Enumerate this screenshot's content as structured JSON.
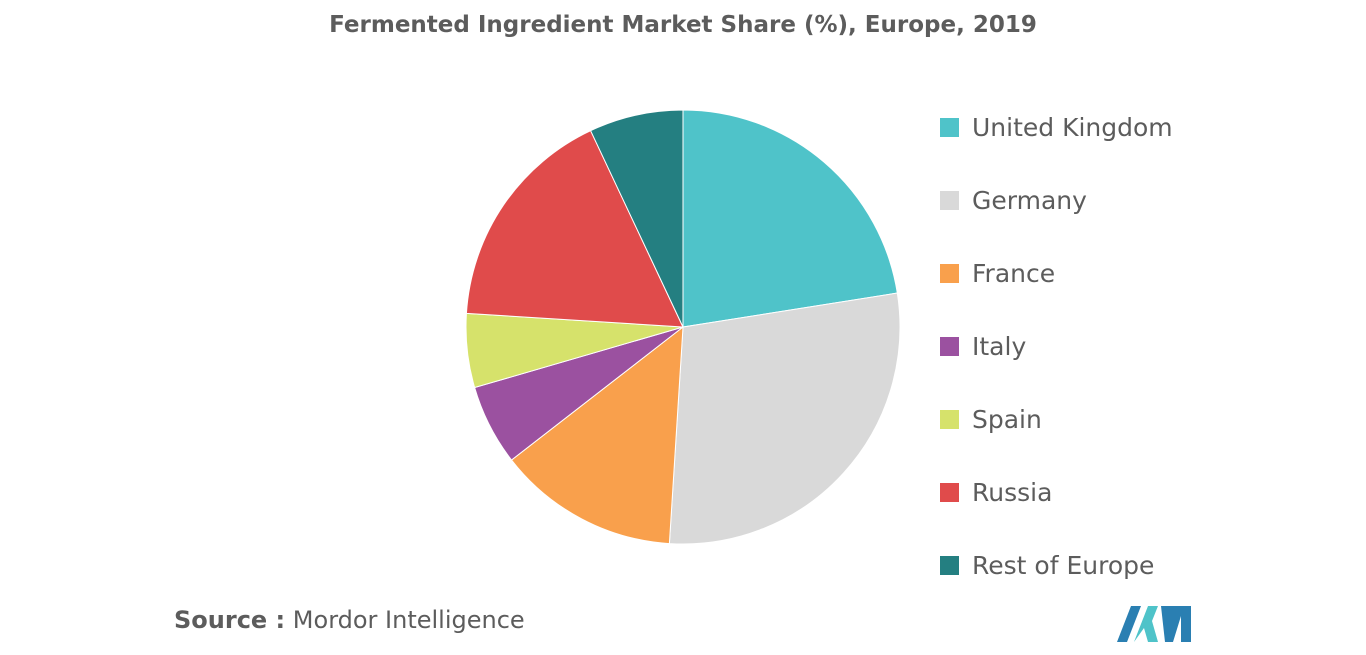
{
  "chart_data": {
    "type": "pie",
    "title": "Fermented Ingredient Market Share (%), Europe, 2019",
    "legend_position": "right",
    "slices": [
      {
        "label": "United Kingdom",
        "value": 22.5,
        "color": "#4fc3c9"
      },
      {
        "label": "Germany",
        "value": 28.5,
        "color": "#d9d9d9"
      },
      {
        "label": "France",
        "value": 13.5,
        "color": "#f9a04c"
      },
      {
        "label": "Italy",
        "value": 6.0,
        "color": "#9b51a0"
      },
      {
        "label": "Spain",
        "value": 5.5,
        "color": "#d6e26b"
      },
      {
        "label": "Russia",
        "value": 17.0,
        "color": "#e04b4b"
      },
      {
        "label": "Rest of Europe",
        "value": 7.0,
        "color": "#247f81"
      }
    ]
  },
  "source": {
    "prefix": "Source :",
    "text": "Mordor Intelligence"
  },
  "logo": {
    "colors": [
      "#2a7fb2",
      "#4fc3c9"
    ]
  }
}
